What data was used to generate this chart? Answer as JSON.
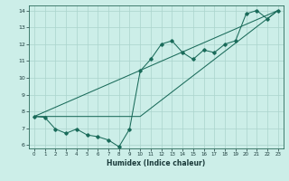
{
  "xlabel": "Humidex (Indice chaleur)",
  "bg_color": "#cceee8",
  "grid_color": "#aad4cc",
  "line_color": "#1a6b5a",
  "xlim": [
    -0.5,
    23.5
  ],
  "ylim": [
    5.8,
    14.3
  ],
  "xticks": [
    0,
    1,
    2,
    3,
    4,
    5,
    6,
    7,
    8,
    9,
    10,
    11,
    12,
    13,
    14,
    15,
    16,
    17,
    18,
    19,
    20,
    21,
    22,
    23
  ],
  "yticks": [
    6,
    7,
    8,
    9,
    10,
    11,
    12,
    13,
    14
  ],
  "line1_x": [
    0,
    1,
    2,
    3,
    4,
    5,
    6,
    7,
    8,
    9,
    10,
    11,
    12,
    13,
    14,
    15,
    16,
    17,
    18,
    19,
    20,
    21,
    22,
    23
  ],
  "line1_y": [
    7.7,
    7.65,
    6.95,
    6.7,
    6.95,
    6.6,
    6.5,
    6.3,
    5.9,
    6.95,
    10.4,
    11.1,
    12.0,
    12.2,
    11.5,
    11.1,
    11.65,
    11.5,
    12.0,
    12.2,
    13.8,
    14.0,
    13.5,
    14.0
  ],
  "line2_x": [
    0,
    23
  ],
  "line2_y": [
    7.7,
    14.0
  ],
  "line3_x": [
    0,
    10,
    23
  ],
  "line3_y": [
    7.7,
    7.7,
    14.0
  ]
}
